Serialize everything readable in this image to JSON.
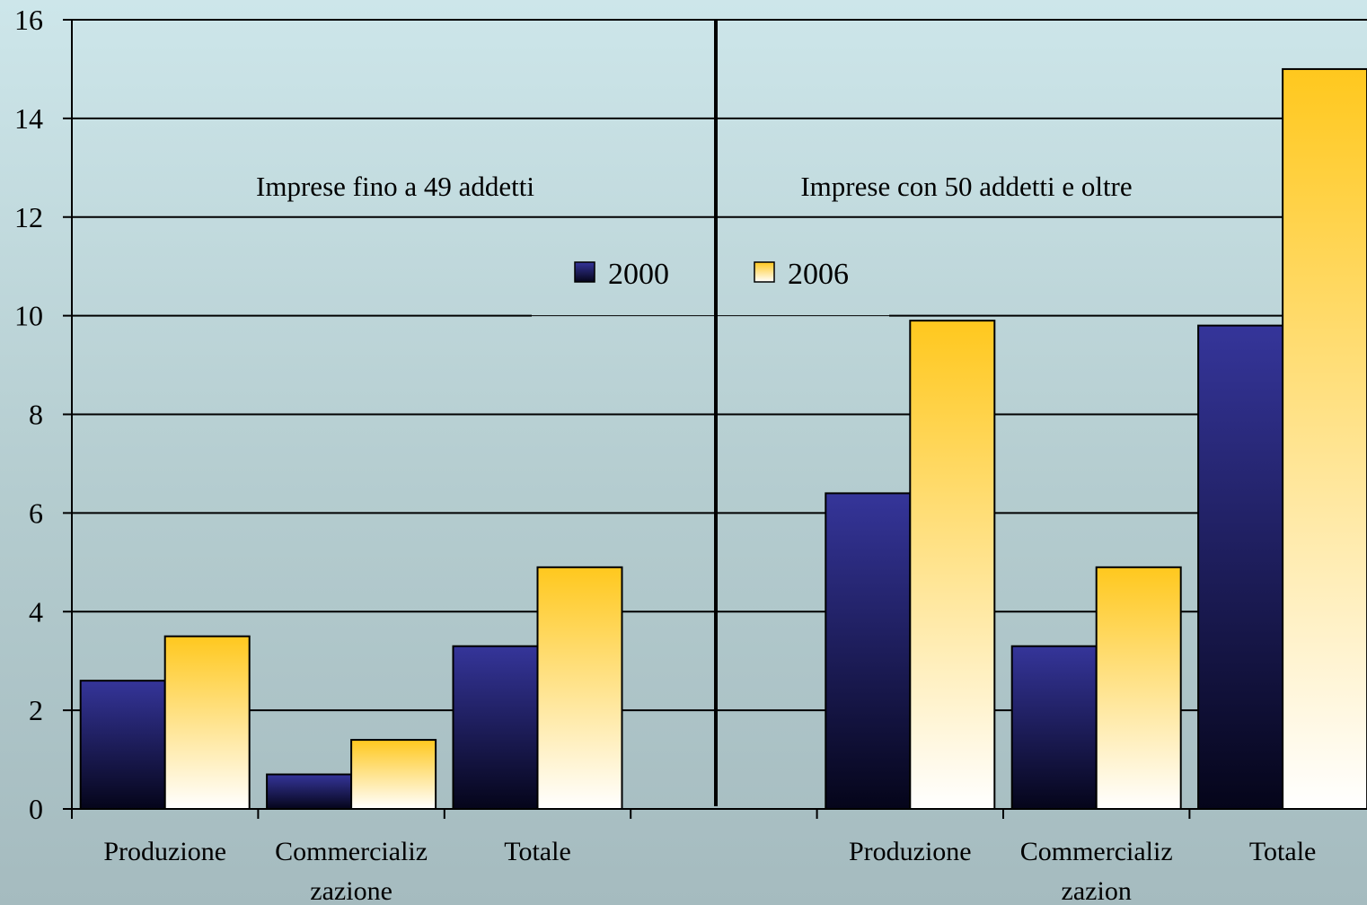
{
  "chart_data": {
    "type": "bar",
    "ylim": [
      0,
      16
    ],
    "yticks": [
      0,
      2,
      4,
      6,
      8,
      10,
      12,
      14,
      16
    ],
    "grid": true,
    "legend_placement": "top-center",
    "colors": {
      "s2000_top": "#35359a",
      "s2000_bottom": "#05051a",
      "s2006_top": "#ffc81e",
      "s2006_bottom": "#ffffff"
    },
    "groups": [
      {
        "label": "Imprese fino a 49 addetti",
        "categories": [
          "Produzione",
          "Commercializ zazione",
          "Totale"
        ],
        "series": [
          {
            "name": "2000",
            "values": [
              2.6,
              0.7,
              3.3
            ]
          },
          {
            "name": "2006",
            "values": [
              3.5,
              1.4,
              4.9
            ]
          }
        ]
      },
      {
        "label": "Imprese con 50 addetti e oltre",
        "categories": [
          "Produzione",
          "Commercializ zazion",
          "Totale"
        ],
        "series": [
          {
            "name": "2000",
            "values": [
              6.4,
              3.3,
              9.8
            ]
          },
          {
            "name": "2006",
            "values": [
              9.9,
              4.9,
              15.0
            ]
          }
        ]
      }
    ],
    "legend": [
      "2000",
      "2006"
    ]
  }
}
